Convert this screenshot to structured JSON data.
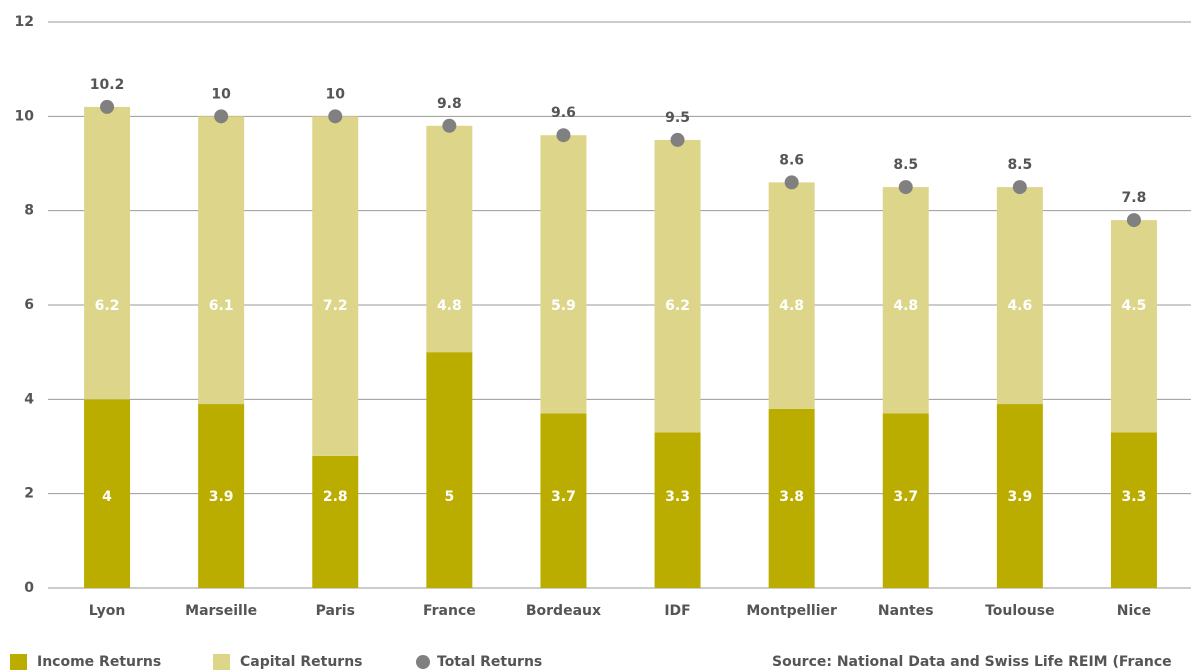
{
  "chart_data": {
    "type": "bar",
    "stacked": true,
    "categories": [
      "Lyon",
      "Marseille",
      "Paris",
      "France",
      "Bordeaux",
      "IDF",
      "Montpellier",
      "Nantes",
      "Toulouse",
      "Nice"
    ],
    "series": [
      {
        "name": "Income Returns",
        "color": "#bbad00",
        "values": [
          4,
          3.9,
          2.8,
          5,
          3.7,
          3.3,
          3.8,
          3.7,
          3.9,
          3.3
        ]
      },
      {
        "name": "Capital Returns",
        "color": "#ddd68a",
        "values": [
          6.2,
          6.1,
          7.2,
          4.8,
          5.9,
          6.2,
          4.8,
          4.8,
          4.6,
          4.5
        ]
      },
      {
        "name": "Total Returns",
        "type": "scatter",
        "color": "#808080",
        "values": [
          10.2,
          10,
          10,
          9.8,
          9.6,
          9.5,
          8.6,
          8.5,
          8.5,
          7.8
        ]
      }
    ],
    "ylim": [
      0,
      12
    ],
    "yticks": [
      0,
      2,
      4,
      6,
      8,
      10,
      12
    ],
    "grid": true,
    "legend": "bottom",
    "source": "Source: National Data and Swiss Life REIM (France"
  }
}
